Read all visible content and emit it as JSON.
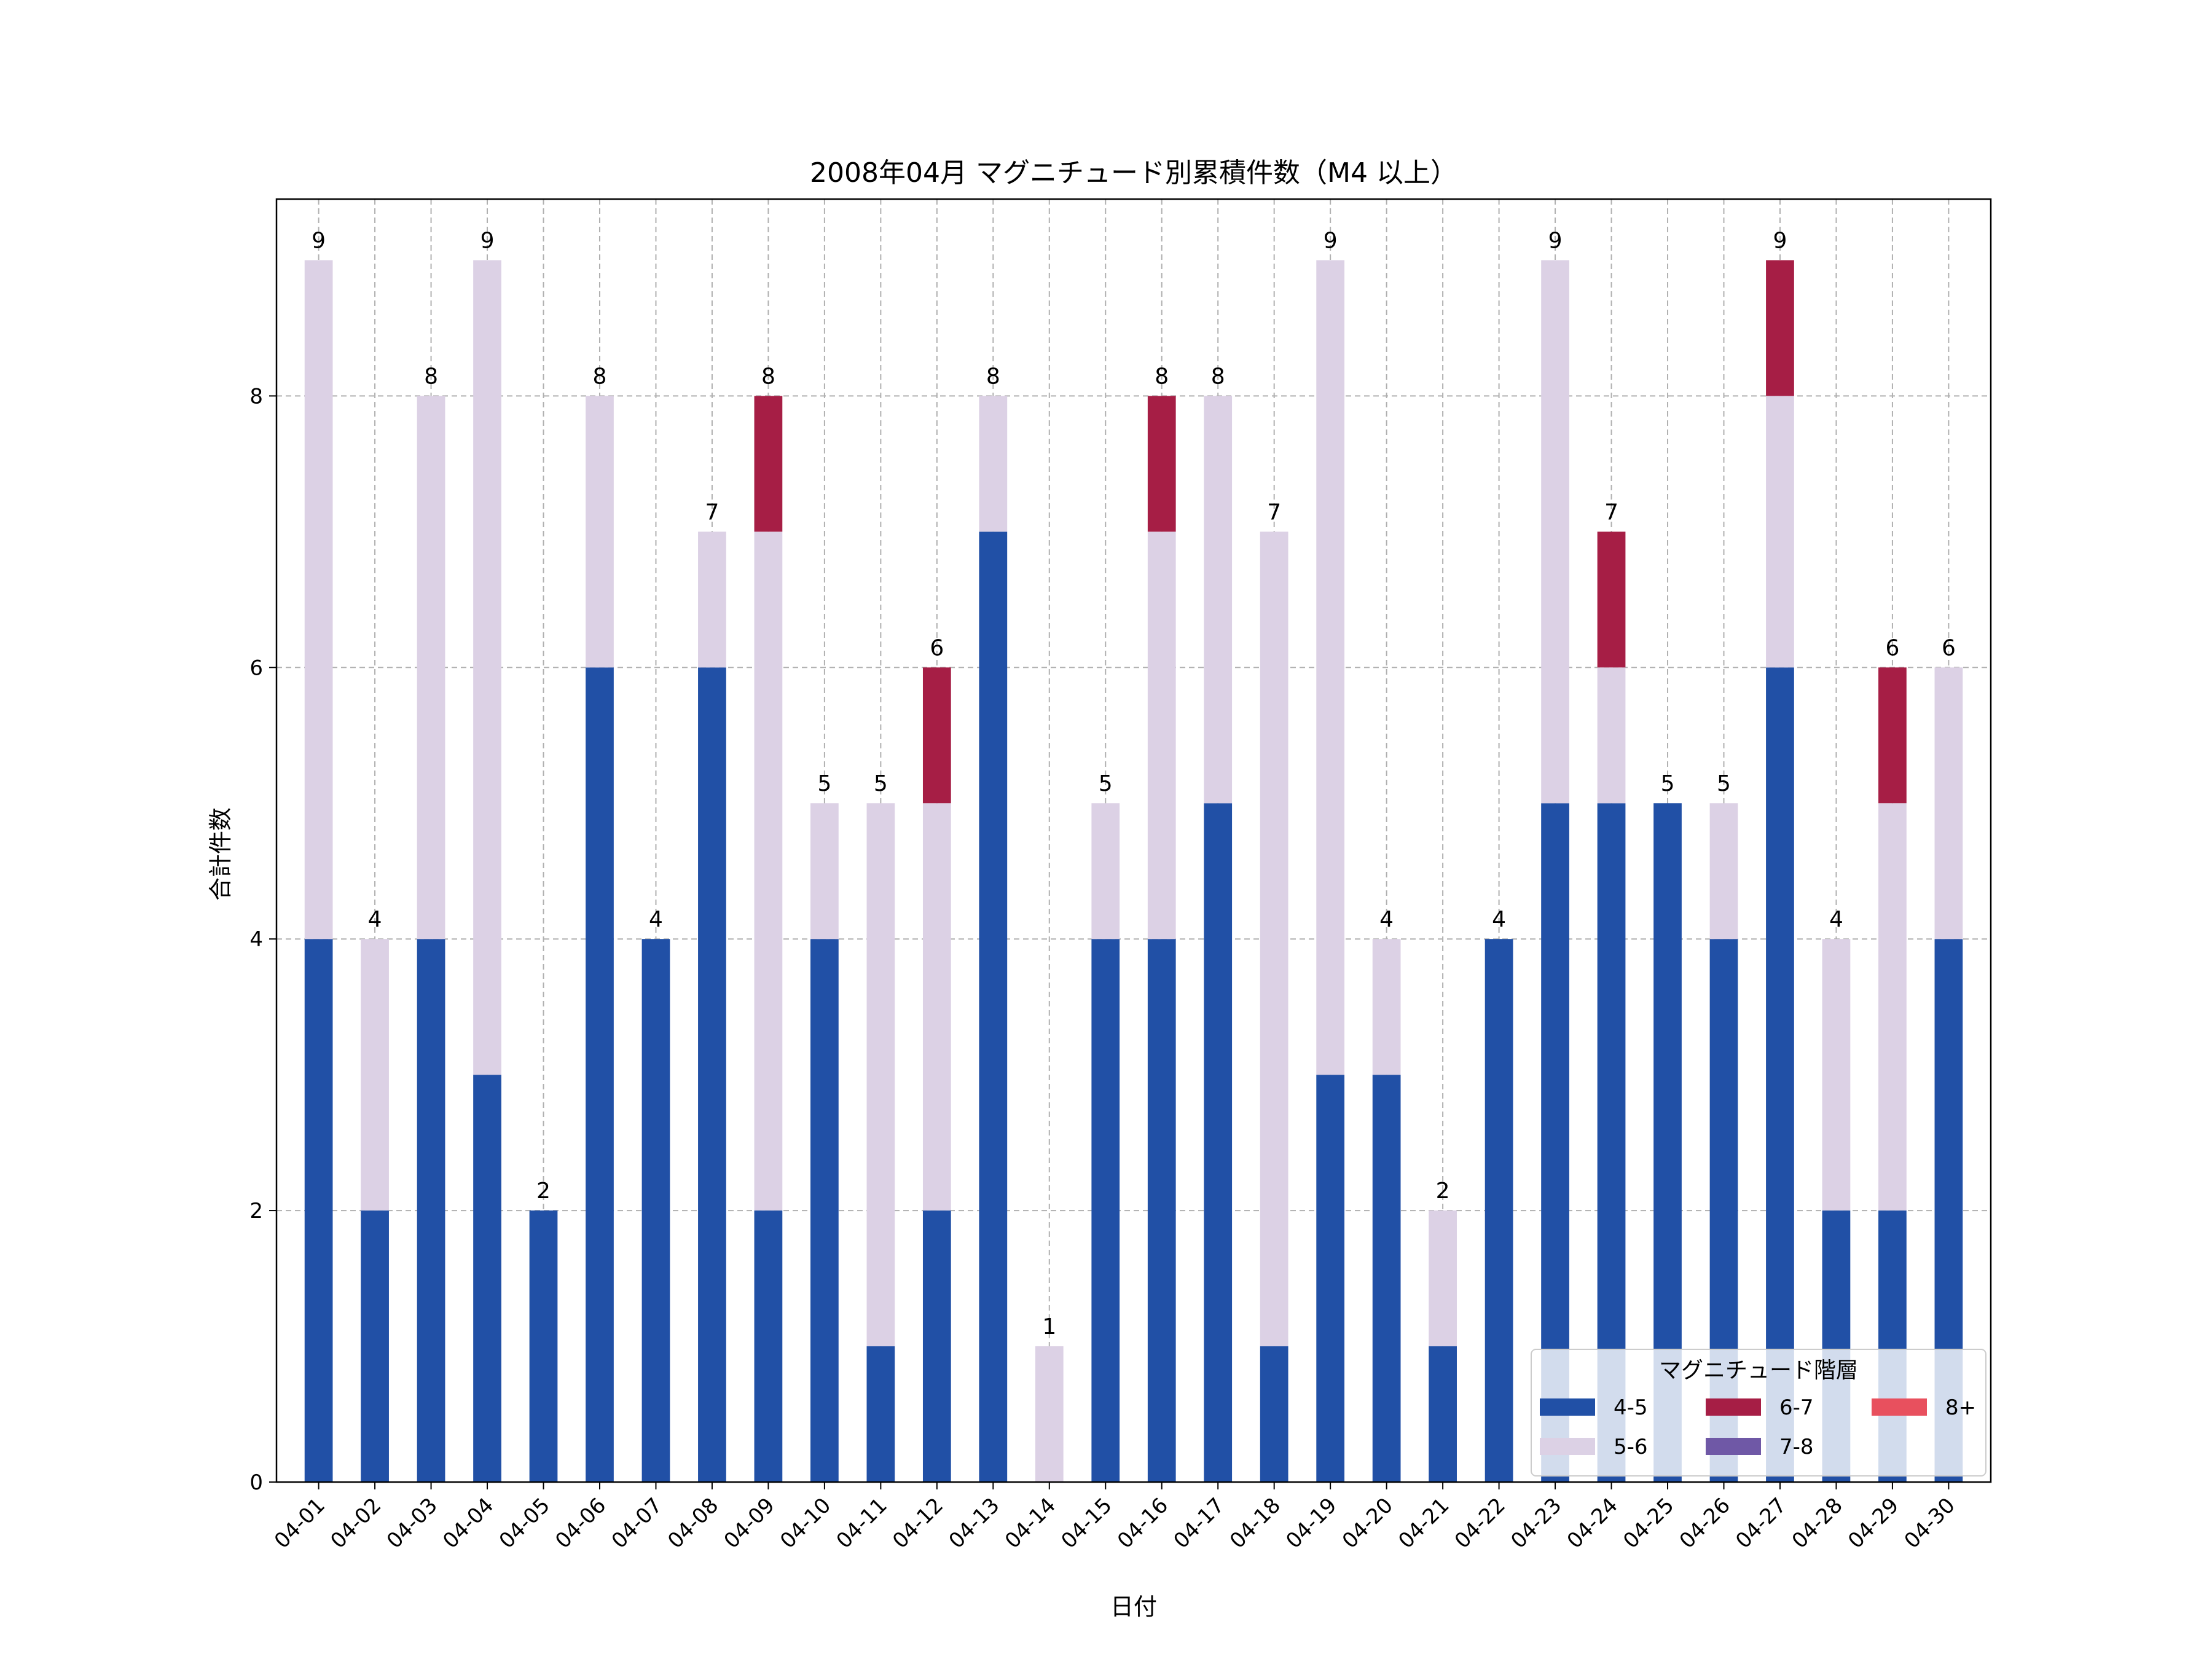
{
  "chart_data": {
    "type": "bar",
    "stacked": true,
    "title": "2008年04月 マグニチュード別累積件数（M4 以上）",
    "xlabel": "日付",
    "ylabel": "合計件数",
    "ylim": [
      0,
      9.45
    ],
    "yticks": [
      0,
      2,
      4,
      6,
      8
    ],
    "grid": true,
    "categories": [
      "04-01",
      "04-02",
      "04-03",
      "04-04",
      "04-05",
      "04-06",
      "04-07",
      "04-08",
      "04-09",
      "04-10",
      "04-11",
      "04-12",
      "04-13",
      "04-14",
      "04-15",
      "04-16",
      "04-17",
      "04-18",
      "04-19",
      "04-20",
      "04-21",
      "04-22",
      "04-23",
      "04-24",
      "04-25",
      "04-26",
      "04-27",
      "04-28",
      "04-29",
      "04-30"
    ],
    "series": [
      {
        "name": "4-5",
        "color": "#2150a6",
        "values": [
          4,
          2,
          4,
          3,
          2,
          6,
          4,
          6,
          2,
          4,
          1,
          2,
          7,
          0,
          4,
          4,
          5,
          1,
          3,
          3,
          1,
          4,
          5,
          5,
          5,
          4,
          6,
          2,
          2,
          4
        ]
      },
      {
        "name": "5-6",
        "color": "#dcd1e5",
        "values": [
          5,
          2,
          4,
          6,
          0,
          2,
          0,
          1,
          5,
          1,
          4,
          3,
          1,
          1,
          1,
          3,
          3,
          6,
          6,
          1,
          1,
          0,
          4,
          1,
          0,
          1,
          2,
          2,
          3,
          2
        ]
      },
      {
        "name": "6-7",
        "color": "#a61e45",
        "values": [
          0,
          0,
          0,
          0,
          0,
          0,
          0,
          0,
          1,
          0,
          0,
          1,
          0,
          0,
          0,
          1,
          0,
          0,
          0,
          0,
          0,
          0,
          0,
          1,
          0,
          0,
          1,
          0,
          1,
          0
        ]
      },
      {
        "name": "7-8",
        "color": "#6f58a6",
        "values": [
          0,
          0,
          0,
          0,
          0,
          0,
          0,
          0,
          0,
          0,
          0,
          0,
          0,
          0,
          0,
          0,
          0,
          0,
          0,
          0,
          0,
          0,
          0,
          0,
          0,
          0,
          0,
          0,
          0,
          0
        ]
      },
      {
        "name": "8+",
        "color": "#e8505e",
        "values": [
          0,
          0,
          0,
          0,
          0,
          0,
          0,
          0,
          0,
          0,
          0,
          0,
          0,
          0,
          0,
          0,
          0,
          0,
          0,
          0,
          0,
          0,
          0,
          0,
          0,
          0,
          0,
          0,
          0,
          0
        ]
      }
    ],
    "totals": [
      9,
      4,
      8,
      9,
      2,
      8,
      4,
      7,
      8,
      5,
      5,
      6,
      8,
      1,
      5,
      8,
      8,
      7,
      9,
      4,
      2,
      4,
      9,
      7,
      5,
      5,
      9,
      4,
      6,
      6
    ],
    "legend": {
      "title": "マグニチュード階層",
      "placement": "lower-right",
      "entries": [
        "4-5",
        "5-6",
        "6-7",
        "7-8",
        "8+"
      ]
    }
  }
}
